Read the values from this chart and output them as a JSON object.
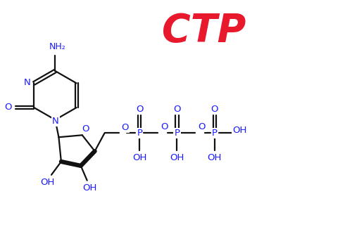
{
  "title": "CTP",
  "title_color": "#e8192c",
  "title_fontsize": 40,
  "title_fontweight": "bold",
  "bg_color": "#ffffff",
  "black": "#111111",
  "blue": "#1a1aff",
  "line_width": 1.6,
  "fig_width": 5.0,
  "fig_height": 3.33,
  "dpi": 100,
  "xlim": [
    0,
    10
  ],
  "ylim": [
    0,
    6.66
  ]
}
